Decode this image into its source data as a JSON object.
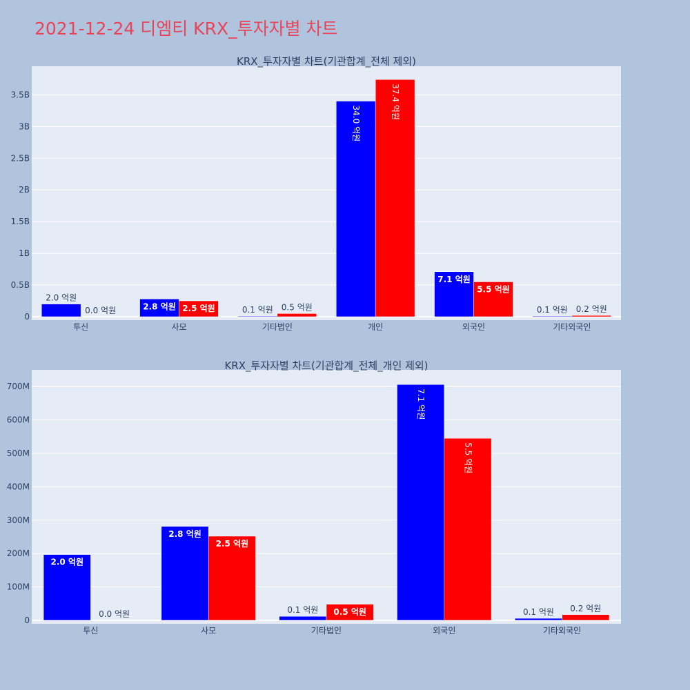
{
  "page": {
    "title": "2021-12-24 디엠티 KRX_투자자별 차트"
  },
  "colors": {
    "page_bg": "#b0c4de",
    "plot_bg": "#e5ecf6",
    "gridline": "#ffffff",
    "series_blue": "#0000ff",
    "series_red": "#ff0000",
    "title_color": "#e8455a",
    "axis_text": "#2a3f5f"
  },
  "chart_data": [
    {
      "type": "bar",
      "title": "KRX_투자자별 차트(기관합계_전체 제외)",
      "xlabel": "",
      "ylabel": "",
      "categories": [
        "투신",
        "사모",
        "기타법인",
        "개인",
        "외국인",
        "기타외국인"
      ],
      "ylim": [
        0,
        3950000000
      ],
      "yticks": [
        0,
        500000000,
        1000000000,
        1500000000,
        2000000000,
        2500000000,
        3000000000,
        3500000000
      ],
      "ytick_labels": [
        "0",
        "0.5B",
        "1B",
        "1.5B",
        "2B",
        "2.5B",
        "3B",
        "3.5B"
      ],
      "grid": true,
      "series": [
        {
          "color": "#0000ff",
          "values": [
            200000000,
            280000000,
            10000000,
            3400000000,
            710000000,
            10000000
          ],
          "labels": [
            "2.0 억원",
            "2.8 억원",
            "0.1 억원",
            "34.0 억원",
            "7.1 억원",
            "0.1 억원"
          ]
        },
        {
          "color": "#ff0000",
          "values": [
            0,
            250000000,
            50000000,
            3740000000,
            550000000,
            20000000
          ],
          "labels": [
            "0.0 억원",
            "2.5 억원",
            "0.5 억원",
            "37.4 억원",
            "5.5 억원",
            "0.2 억원"
          ]
        }
      ]
    },
    {
      "type": "bar",
      "title": "KRX_투자자별 차트(기관합계_전체_개인 제외)",
      "xlabel": "",
      "ylabel": "",
      "categories": [
        "투신",
        "사모",
        "기타법인",
        "외국인",
        "기타외국인"
      ],
      "ylim": [
        0,
        750000000
      ],
      "yticks": [
        0,
        100000000,
        200000000,
        300000000,
        400000000,
        500000000,
        600000000,
        700000000
      ],
      "ytick_labels": [
        "0",
        "100M",
        "200M",
        "300M",
        "400M",
        "500M",
        "600M",
        "700M"
      ],
      "grid": true,
      "series": [
        {
          "color": "#0000ff",
          "values": [
            197000000,
            281000000,
            12000000,
            706000000,
            6000000
          ],
          "labels": [
            "2.0 억원",
            "2.8 억원",
            "0.1 억원",
            "7.1 억원",
            "0.1 억원"
          ]
        },
        {
          "color": "#ff0000",
          "values": [
            0,
            252000000,
            48000000,
            545000000,
            17000000
          ],
          "labels": [
            "0.0 억원",
            "2.5 억원",
            "0.5 억원",
            "5.5 억원",
            "0.2 억원"
          ]
        }
      ]
    }
  ]
}
